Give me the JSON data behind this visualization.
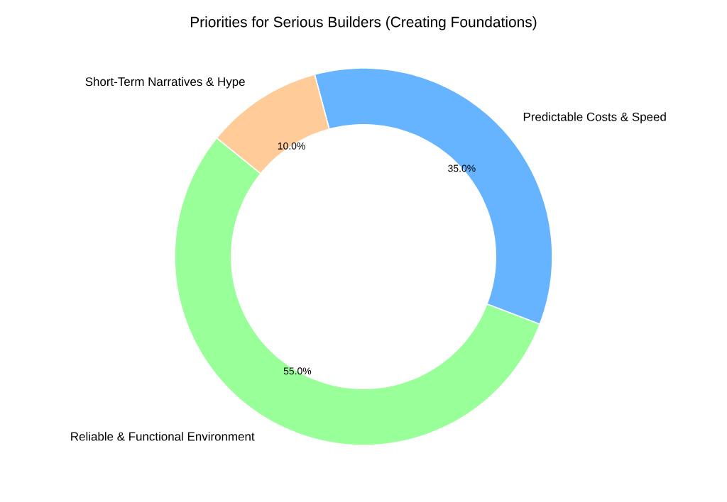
{
  "chart_data": {
    "type": "donut",
    "title": "Priorities for Serious Builders (Creating Foundations)",
    "categories": [
      "Predictable Costs & Speed",
      "Reliable & Functional Environment",
      "Short-Term Narratives & Hype"
    ],
    "values": [
      35.0,
      55.0,
      10.0
    ],
    "colors": [
      "#66b3ff",
      "#99ff99",
      "#ffcc99"
    ],
    "value_labels": [
      "35.0%",
      "55.0%",
      "10.0%"
    ]
  }
}
